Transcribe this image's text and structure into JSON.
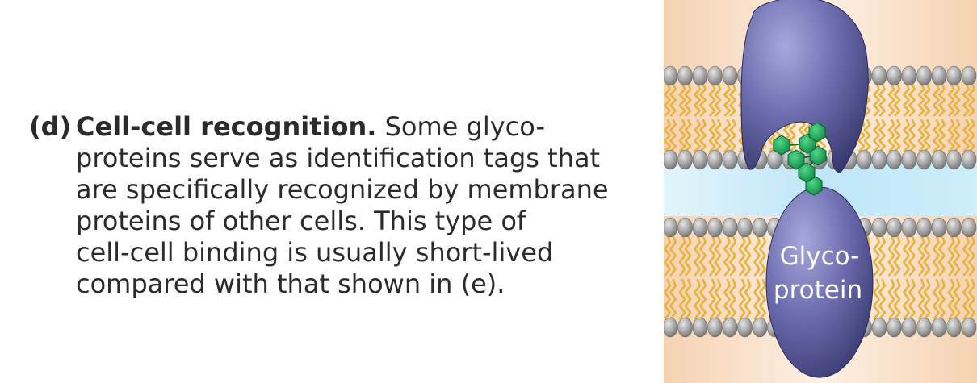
{
  "caption": {
    "label": "(d)",
    "heading": "Cell-cell recognition.",
    "lines": [
      "Some glyco-",
      "proteins serve as identification tags that",
      "are specifically recognized by membrane",
      "proteins of other cells. This type of",
      "cell-cell binding is usually short-lived",
      "compared with that shown in (e)."
    ]
  },
  "diagram": {
    "glycoprotein_label_lines": [
      "Glyco-",
      "protein"
    ],
    "colors": {
      "background_edge": "#f5d2b2",
      "background_center": "#fdf0e4",
      "extracellular_fluid": "#cfeefa",
      "phospholipid_head": "#9a9a9a",
      "lipid_tail": "#e8b33c",
      "protein": "#5c5c9e",
      "carbohydrate": "#1fa55a"
    },
    "icons": [
      "phospholipid-head-icon",
      "lipid-tail-icon",
      "receptor-protein-icon",
      "glycoprotein-icon",
      "carbohydrate-chain-icon"
    ]
  }
}
